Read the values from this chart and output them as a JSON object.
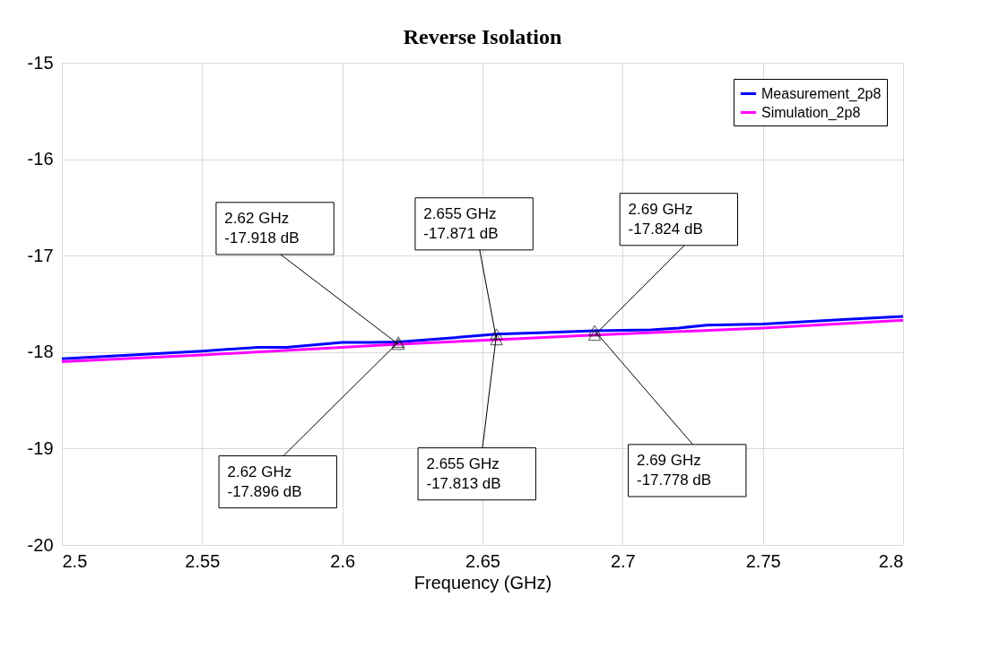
{
  "chart_data": {
    "type": "line",
    "title": "Reverse Isolation",
    "xlabel": "Frequency (GHz)",
    "xlim": [
      2.5,
      2.8
    ],
    "xticks": [
      2.5,
      2.55,
      2.6,
      2.65,
      2.7,
      2.75,
      2.8
    ],
    "ylim": [
      -20,
      -15
    ],
    "yticks": [
      -20,
      -19,
      -18,
      -17,
      -16,
      -15
    ],
    "grid": true,
    "legend": "top right",
    "line_style": "solid",
    "series": [
      {
        "name": "Measurement_2p8",
        "color": "#0000ff",
        "x": [
          2.5,
          2.55,
          2.57,
          2.58,
          2.6,
          2.61,
          2.62,
          2.64,
          2.655,
          2.67,
          2.69,
          2.71,
          2.72,
          2.73,
          2.75,
          2.78,
          2.8
        ],
        "values": [
          -18.07,
          -17.99,
          -17.95,
          -17.95,
          -17.9,
          -17.9,
          -17.896,
          -17.85,
          -17.813,
          -17.8,
          -17.778,
          -17.77,
          -17.75,
          -17.72,
          -17.71,
          -17.66,
          -17.63
        ]
      },
      {
        "name": "Simulation_2p8",
        "color": "#ff00ff",
        "x": [
          2.5,
          2.55,
          2.6,
          2.62,
          2.655,
          2.69,
          2.75,
          2.8
        ],
        "values": [
          -18.1,
          -18.03,
          -17.95,
          -17.918,
          -17.871,
          -17.824,
          -17.75,
          -17.67
        ]
      }
    ],
    "annotations": [
      {
        "text": "2.62 GHz\n-17.918 dB",
        "x": 2.62,
        "y": -17.918
      },
      {
        "text": "2.655 GHz\n-17.871 dB",
        "x": 2.655,
        "y": -17.871
      },
      {
        "text": "2.69 GHz\n-17.824 dB",
        "x": 2.69,
        "y": -17.824
      },
      {
        "text": "2.62 GHz\n-17.896 dB",
        "x": 2.62,
        "y": -17.896
      },
      {
        "text": "2.655 GHz\n-17.813 dB",
        "x": 2.655,
        "y": -17.813
      },
      {
        "text": "2.69 GHz\n-17.778 dB",
        "x": 2.69,
        "y": -17.778
      }
    ]
  }
}
